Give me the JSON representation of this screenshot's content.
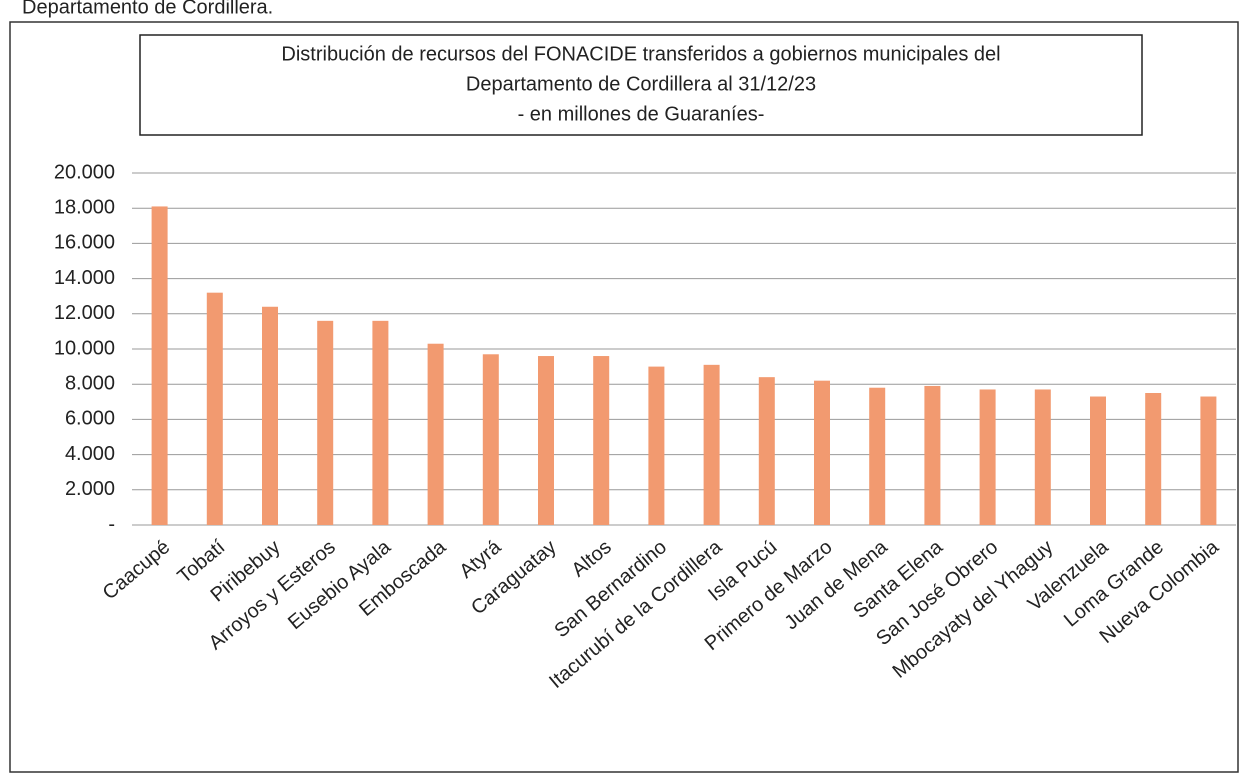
{
  "heading": "Departamento de Cordillera.",
  "chart_data": {
    "type": "bar",
    "title": [
      "Distribución de recursos del FONACIDE transferidos a gobiernos municipales del",
      "Departamento de Cordillera al 31/12/23",
      "- en millones de Guaraníes-"
    ],
    "categories": [
      "Caacupé",
      "Tobatí",
      "Piribebuy",
      "Arroyos y Esteros",
      "Eusebio Ayala",
      "Emboscada",
      "Atyrá",
      "Caraguatay",
      "Altos",
      "San Bernardino",
      "Itacurubí de la Cordillera",
      "Isla Pucú",
      "Primero de Marzo",
      "Juan de Mena",
      "Santa Elena",
      "San José Obrero",
      "Mbocayaty del Yhaguy",
      "Valenzuela",
      "Loma Grande",
      "Nueva Colombia"
    ],
    "values": [
      18100,
      13200,
      12400,
      11600,
      11600,
      10300,
      9700,
      9600,
      9600,
      9000,
      9100,
      8400,
      8200,
      7800,
      7900,
      7700,
      7700,
      7300,
      7500,
      7300
    ],
    "color": "#f29a70",
    "ylim": [
      0,
      20000
    ],
    "yticks": [
      {
        "value": 0,
        "label": "-"
      },
      {
        "value": 2000,
        "label": "2.000"
      },
      {
        "value": 4000,
        "label": "4.000"
      },
      {
        "value": 6000,
        "label": "6.000"
      },
      {
        "value": 8000,
        "label": "8.000"
      },
      {
        "value": 10000,
        "label": "10.000"
      },
      {
        "value": 12000,
        "label": "12.000"
      },
      {
        "value": 14000,
        "label": "14.000"
      },
      {
        "value": 16000,
        "label": "16.000"
      },
      {
        "value": 18000,
        "label": "18.000"
      },
      {
        "value": 20000,
        "label": "20.000"
      }
    ],
    "grid": true
  }
}
